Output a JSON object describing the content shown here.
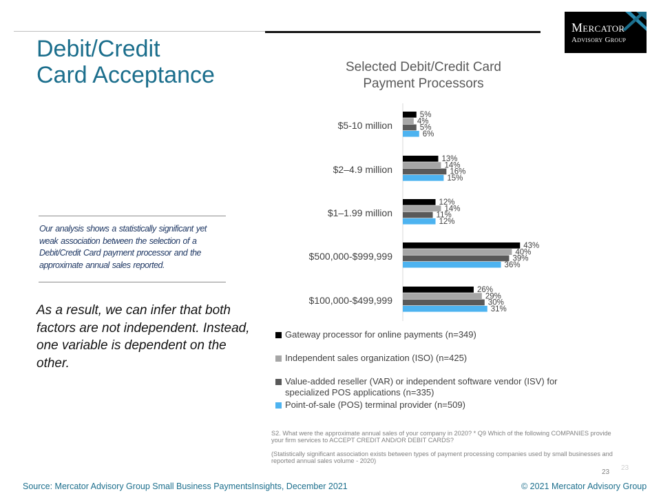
{
  "logo": {
    "line1": "Mercator",
    "line2": "Advisory Group"
  },
  "page": {
    "title": "Debit/Credit\nCard Acceptance",
    "note": "Our analysis shows a statistically significant yet weak association between the selection of a Debit/Credit Card payment processor and the approximate annual sales reported.",
    "conclusion": "As a result, we can infer that both factors are not independent. Instead, one variable is dependent on the other.",
    "footnote_q": "S2. What were the approximate annual sales of your company in 2020? * Q9 Which of the following COMPANIES provide your firm services to ACCEPT CREDIT AND/OR DEBIT CARDS?",
    "footnote_stat": "(Statistically significant association exists between types of payment processing companies used by small businesses and reported annual sales volume - 2020)",
    "page_number": "23",
    "page_number_ghost": "23",
    "source": "Source: Mercator Advisory Group Small Business PaymentsInsights, December 2021",
    "copyright": "© 2021 Mercator Advisory Group"
  },
  "chart_data": {
    "type": "bar",
    "orientation": "horizontal",
    "title": "Selected Debit/Credit Card\nPayment Processors",
    "categories": [
      "$5-10 million",
      "$2–4.9 million",
      "$1–1.99 million",
      "$500,000-$999,999",
      "$100,000-$499,999"
    ],
    "series": [
      {
        "name": "Gateway processor for online payments  (n=349)",
        "color": "#000000",
        "values": [
          5,
          13,
          12,
          43,
          26
        ]
      },
      {
        "name": "Independent sales organization (ISO) (n=425)",
        "color": "#a6a6a6",
        "values": [
          4,
          14,
          14,
          40,
          29
        ]
      },
      {
        "name": "Value-added reseller (VAR) or independent software vendor (ISV) for specialized POS applications (n=335)",
        "color": "#595959",
        "values": [
          5,
          16,
          11,
          39,
          30
        ]
      },
      {
        "name": "Point-of-sale (POS) terminal provider (n=509)",
        "color": "#4db3f0",
        "values": [
          6,
          15,
          12,
          36,
          31
        ]
      }
    ],
    "value_suffix": "%",
    "xlim": [
      0,
      50
    ],
    "grid": false,
    "legend_position": "bottom"
  }
}
